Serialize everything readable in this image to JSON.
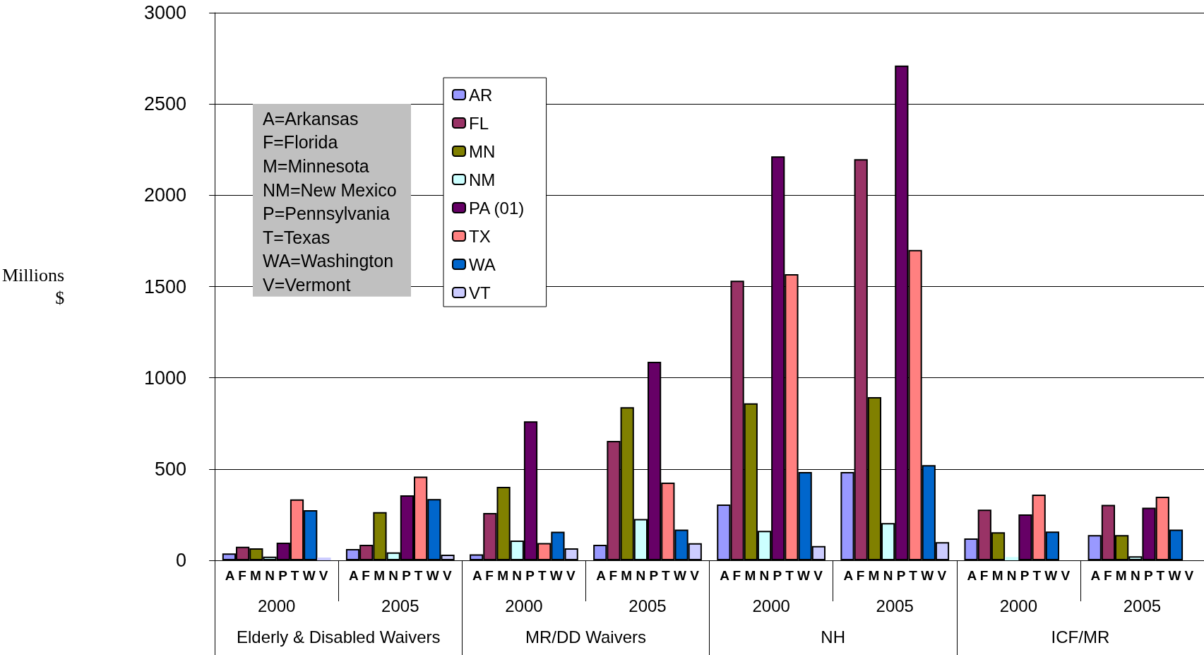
{
  "chart_data": {
    "type": "bar",
    "ylabel": "Millions $",
    "categories": [
      "2000",
      "2005",
      "2000",
      "2005",
      "2000",
      "2005",
      "2000",
      "2005"
    ],
    "series": [
      {
        "name": "AR",
        "color": "#9999ff",
        "values": [
          38,
          62,
          33,
          85,
          306,
          484,
          120,
          138
        ]
      },
      {
        "name": "FL",
        "color": "#993366",
        "values": [
          75,
          85,
          259,
          654,
          1532,
          2198,
          278,
          304
        ]
      },
      {
        "name": "MN",
        "color": "#808000",
        "values": [
          66,
          264,
          403,
          839,
          860,
          894,
          154,
          138
        ]
      },
      {
        "name": "NM",
        "color": "#ccffff",
        "values": [
          20,
          44,
          108,
          226,
          162,
          204,
          18,
          22
        ]
      },
      {
        "name": "PA (01)",
        "color": "#660066",
        "values": [
          97,
          356,
          762,
          1088,
          2213,
          2711,
          252,
          288
        ]
      },
      {
        "name": "TX",
        "color": "#ff8080",
        "values": [
          334,
          459,
          95,
          426,
          1568,
          1700,
          360,
          348
        ]
      },
      {
        "name": "WA",
        "color": "#0066cc",
        "values": [
          275,
          336,
          157,
          168,
          484,
          522,
          158,
          168
        ]
      },
      {
        "name": "VT",
        "color": "#ccccff",
        "values": [
          15,
          31,
          66,
          94,
          78,
          100,
          null,
          null
        ]
      }
    ],
    "ylim": [
      0,
      3000
    ],
    "yticks": [
      0,
      500,
      1000,
      1500,
      2000,
      2500,
      3000
    ],
    "grid": "y",
    "legend": "top",
    "annotations": [
      "A=Arkansas",
      "F=Florida",
      "M=Minnesota",
      "NM=New Mexico",
      "P=Pennsylvania",
      "T=Texas",
      "WA=Washington",
      "V=Vermont",
      "Elderly & Disabled Waivers",
      "MR/DD Waivers",
      "NH",
      "ICF/MR",
      "A F M N P T W V",
      "A F M N P T W V",
      "A F M N P T W V",
      "A F M N P T W V",
      "A F M N P T W V",
      "A F M N P T W V",
      "A F M N P T W V",
      "A F M N P T W V"
    ]
  }
}
